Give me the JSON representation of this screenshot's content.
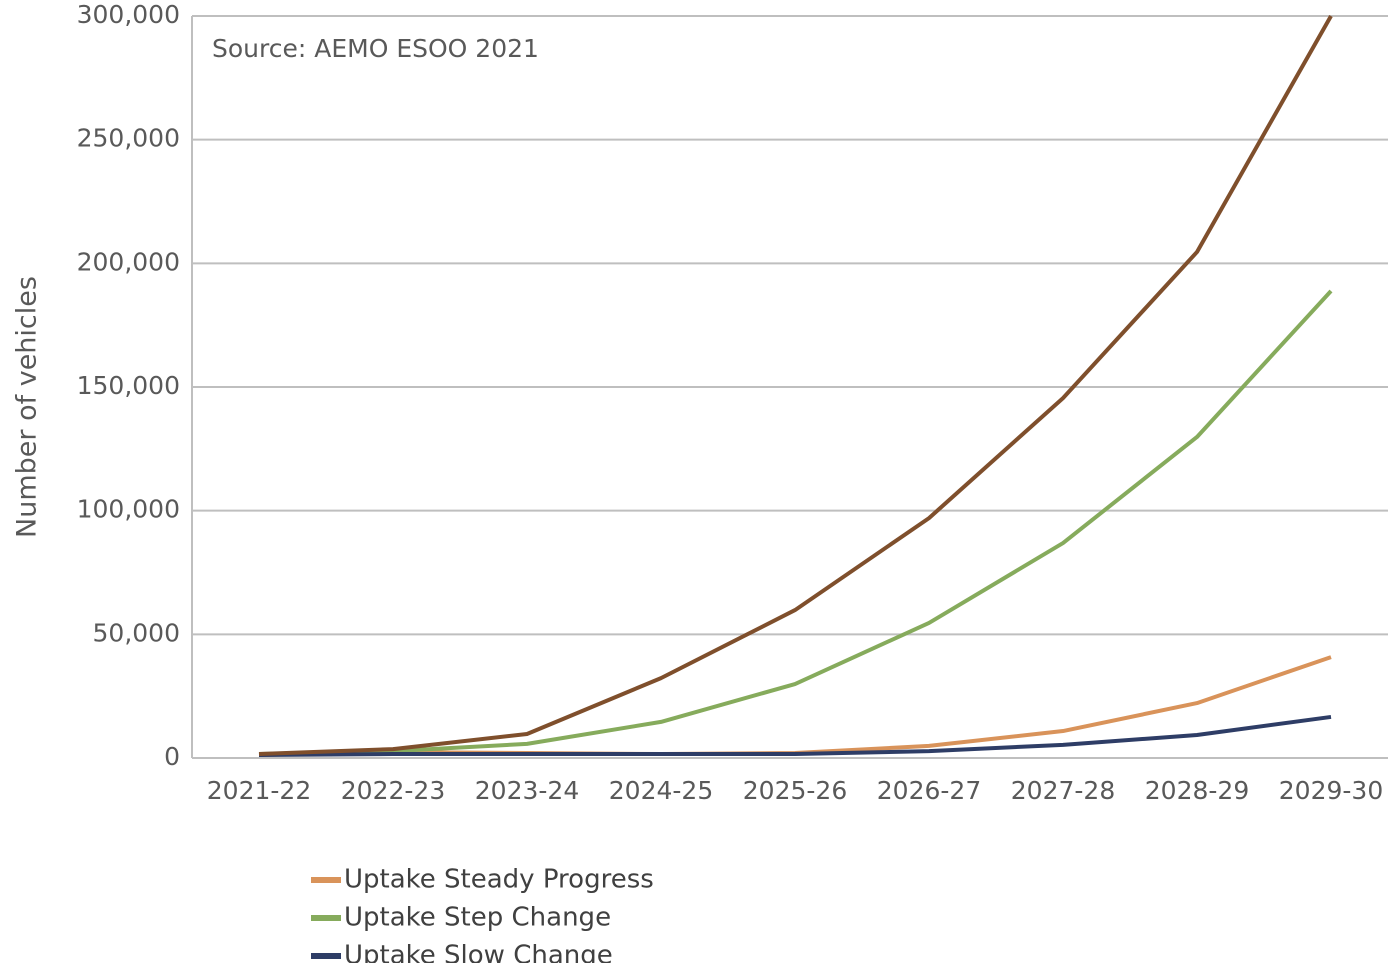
{
  "chart_data": {
    "type": "line",
    "annotation": "Source: AEMO ESOO 2021",
    "y_label": "Number of vehicles",
    "categories": [
      "2021-22",
      "2022-23",
      "2023-24",
      "2024-25",
      "2025-26",
      "2026-27",
      "2027-28",
      "2028-29",
      "2029-30"
    ],
    "series": [
      {
        "name": "Uptake Steady Progress",
        "color": "#d9935a",
        "values": [
          1200,
          2400,
          2000,
          1600,
          2000,
          4900,
          10900,
          22200,
          40800
        ]
      },
      {
        "name": "Uptake Step Change",
        "color": "#86ab5c",
        "values": [
          1600,
          2800,
          5700,
          14600,
          29900,
          54600,
          86900,
          129800,
          188800
        ]
      },
      {
        "name": "Uptake Slow Change",
        "color": "#2e3d66",
        "values": [
          1200,
          1600,
          1600,
          1600,
          1600,
          2800,
          5300,
          9300,
          16600
        ]
      },
      {
        "color": "#7f4f2c",
        "values": [
          1600,
          3600,
          9700,
          32300,
          59800,
          97000,
          145500,
          204600,
          300000
        ]
      }
    ],
    "ylim": [
      0,
      300000
    ],
    "yticks": [
      0,
      {
        "value": 50000,
        "label": "50,000"
      },
      {
        "value": 100000,
        "label": "100,000"
      },
      {
        "value": 150000,
        "label": "150,000"
      },
      {
        "value": 200000,
        "label": "200,000"
      },
      {
        "value": 250000,
        "label": "250,000"
      },
      {
        "value": 300000,
        "label": "300,000"
      }
    ],
    "grid": true
  }
}
